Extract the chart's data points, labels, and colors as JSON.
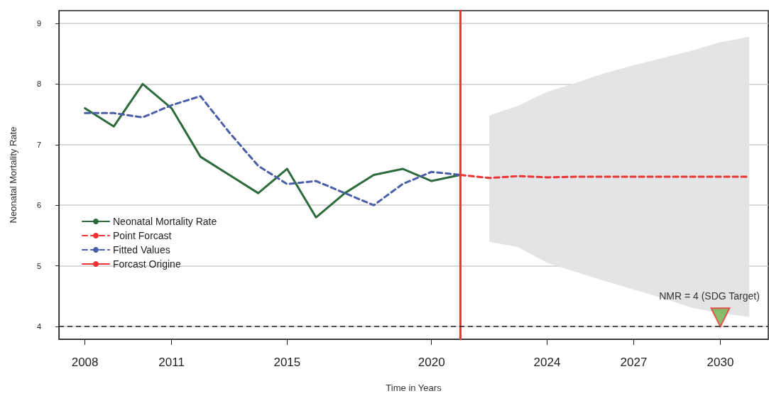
{
  "chart_data": {
    "type": "line",
    "xlabel": "Time in Years",
    "ylabel": "Neonatal Mortality Rate",
    "xlim": [
      2007.1,
      2031.66
    ],
    "ylim": [
      3.79,
      9.21
    ],
    "xticks": [
      2008,
      2011,
      2015,
      2020,
      2024,
      2027,
      2030
    ],
    "yticks": [
      4,
      5,
      6,
      7,
      8,
      9
    ],
    "grid": "y",
    "legend": "left",
    "marker": "none",
    "series": [
      {
        "name": "Neonatal Mortality Rate",
        "color": "#2e6b3c",
        "line_style": "solid",
        "x": [
          2008,
          2009,
          2010,
          2011,
          2012,
          2013,
          2014,
          2015,
          2016,
          2017,
          2018,
          2019,
          2020,
          2021
        ],
        "values": [
          7.6,
          7.3,
          8.0,
          7.6,
          6.8,
          6.5,
          6.2,
          6.6,
          5.8,
          6.2,
          6.5,
          6.6,
          6.4,
          6.5
        ]
      },
      {
        "name": "Point Forcast",
        "color": "#ee3333",
        "line_style": "dashed",
        "x": [
          2021,
          2022,
          2023,
          2024,
          2025,
          2026,
          2027,
          2028,
          2029,
          2030,
          2031
        ],
        "values": [
          6.5,
          6.45,
          6.48,
          6.46,
          6.47,
          6.47,
          6.47,
          6.47,
          6.47,
          6.47,
          6.47
        ],
        "lower": [
          null,
          5.4,
          5.31,
          5.05,
          4.9,
          4.75,
          4.61,
          4.47,
          4.31,
          4.22,
          4.16
        ],
        "upper": [
          null,
          7.48,
          7.64,
          7.87,
          8.02,
          8.18,
          8.31,
          8.43,
          8.55,
          8.69,
          8.78
        ]
      },
      {
        "name": "Fitted Values",
        "color": "#4a5fa8",
        "line_style": "dashed",
        "x": [
          2008,
          2009,
          2010,
          2011,
          2012,
          2013,
          2014,
          2015,
          2016,
          2017,
          2018,
          2019,
          2020,
          2021
        ],
        "values": [
          7.52,
          7.52,
          7.45,
          7.65,
          7.8,
          7.2,
          6.65,
          6.35,
          6.4,
          6.2,
          6.0,
          6.35,
          6.55,
          6.5
        ]
      },
      {
        "name": "Forcast Origine",
        "color": "#ee3333",
        "line_style": "solid",
        "x": [
          2021,
          2021
        ],
        "values": [
          3.79,
          9.21
        ]
      },
      {
        "type": "scatter",
        "color": "#6ab04c",
        "marker": "triangle",
        "x": [
          2030
        ],
        "values": [
          4.15
        ]
      }
    ],
    "ref_lines": [
      {
        "axis": "y",
        "value": 4,
        "color": "#222222",
        "line_style": "dashed"
      }
    ],
    "annotations": [
      {
        "text": "NMR = 4 (SDG Target)",
        "x": 2030,
        "y": 4
      }
    ]
  }
}
